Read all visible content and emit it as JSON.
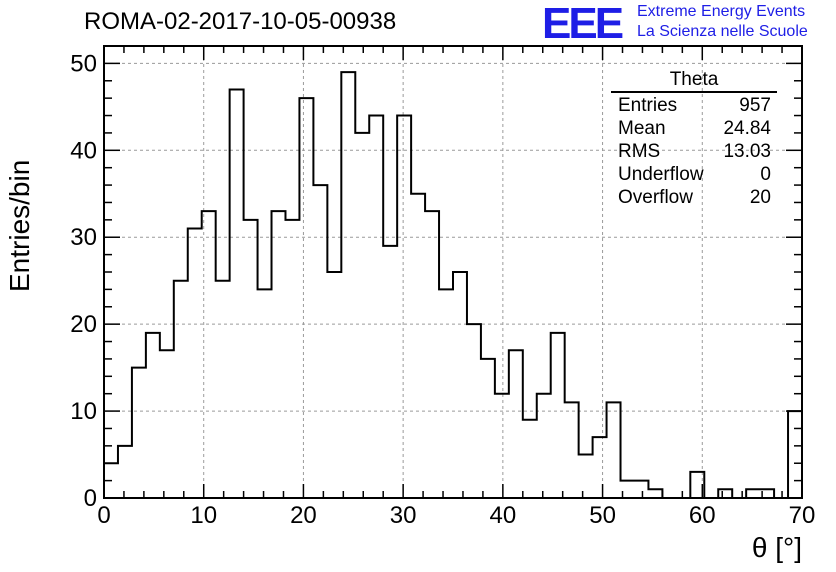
{
  "header": {
    "run_title": "ROMA-02-2017-10-05-00938",
    "logo_mark": "EEE",
    "logo_line1": "Extreme Energy Events",
    "logo_line2": "La Scienza nelle Scuole",
    "logo_color": "#1e1ee6"
  },
  "stats": {
    "title": "Theta",
    "rows": [
      {
        "label": "Entries",
        "value": "957"
      },
      {
        "label": "Mean",
        "value": "24.84"
      },
      {
        "label": "RMS",
        "value": "13.03"
      },
      {
        "label": "Underflow",
        "value": "0"
      },
      {
        "label": "Overflow",
        "value": "20"
      }
    ]
  },
  "chart_data": {
    "type": "bar",
    "histogram": true,
    "title": "ROMA-02-2017-10-05-00938",
    "xlabel": "θ [°]",
    "ylabel": "Entries/bin",
    "xlim": [
      0,
      70
    ],
    "ylim": [
      0,
      52
    ],
    "x_ticks": [
      0,
      10,
      20,
      30,
      40,
      50,
      60,
      70
    ],
    "y_ticks": [
      0,
      10,
      20,
      30,
      40,
      50
    ],
    "grid": true,
    "bin_width": 1.4,
    "values": [
      4,
      6,
      15,
      19,
      17,
      25,
      31,
      33,
      25,
      47,
      32,
      24,
      33,
      32,
      46,
      36,
      26,
      49,
      42,
      44,
      29,
      44,
      35,
      33,
      24,
      26,
      20,
      16,
      12,
      17,
      9,
      12,
      19,
      11,
      5,
      7,
      11,
      2,
      2,
      1,
      0,
      0,
      3,
      0,
      1,
      0,
      1,
      1,
      0,
      10
    ],
    "line_color": "#000000"
  }
}
